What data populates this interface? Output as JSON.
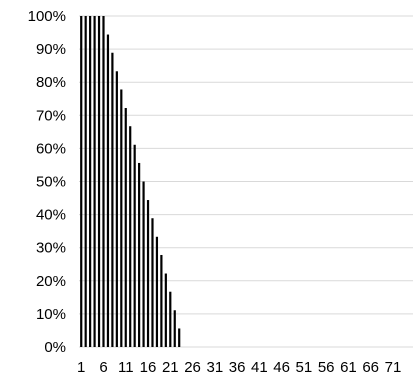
{
  "chart_data": {
    "type": "bar",
    "title": "",
    "xlabel": "",
    "ylabel": "",
    "ylim": [
      0,
      1
    ],
    "yticks": [
      0,
      0.1,
      0.2,
      0.3,
      0.4,
      0.5,
      0.6,
      0.7,
      0.8,
      0.9,
      1.0
    ],
    "ytick_labels": [
      "0%",
      "10%",
      "20%",
      "30%",
      "40%",
      "50%",
      "60%",
      "70%",
      "80%",
      "90%",
      "100%"
    ],
    "categories": [
      1,
      2,
      3,
      4,
      5,
      6,
      7,
      8,
      9,
      10,
      11,
      12,
      13,
      14,
      15,
      16,
      17,
      18,
      19,
      20,
      21,
      22,
      23,
      24,
      25,
      26,
      27,
      28,
      29,
      30,
      31,
      32,
      33,
      34,
      35,
      36,
      37,
      38,
      39,
      40,
      41,
      42,
      43,
      44,
      45,
      46,
      47,
      48,
      49,
      50,
      51,
      52,
      53,
      54,
      55,
      56,
      57,
      58,
      59,
      60,
      61,
      62,
      63,
      64,
      65,
      66,
      67,
      68,
      69,
      70,
      71,
      72,
      73,
      74,
      75
    ],
    "xtick_labels": [
      "1",
      "6",
      "11",
      "16",
      "21",
      "26",
      "31",
      "36",
      "41",
      "46",
      "51",
      "56",
      "61",
      "66",
      "71"
    ],
    "values": [
      1.0,
      1.0,
      1.0,
      1.0,
      1.0,
      1.0,
      0.944,
      0.889,
      0.833,
      0.778,
      0.722,
      0.667,
      0.611,
      0.556,
      0.5,
      0.444,
      0.389,
      0.333,
      0.278,
      0.222,
      0.167,
      0.111,
      0.056,
      0,
      0,
      0,
      0,
      0,
      0,
      0,
      0,
      0,
      0,
      0,
      0,
      0,
      0,
      0,
      0,
      0,
      0,
      0,
      0,
      0,
      0,
      0,
      0,
      0,
      0,
      0,
      0,
      0,
      0,
      0,
      0,
      0,
      0,
      0,
      0,
      0,
      0,
      0,
      0,
      0,
      0,
      0,
      0,
      0,
      0,
      0,
      0,
      0,
      0,
      0,
      0
    ],
    "bar_color": "#000000",
    "grid": true,
    "grid_color": "#d9d9d9",
    "legend": "none"
  }
}
